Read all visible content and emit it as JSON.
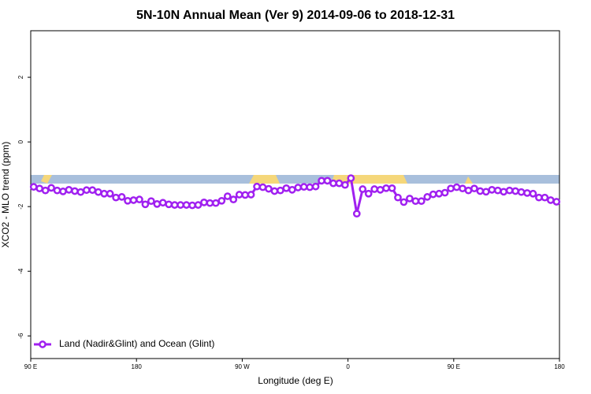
{
  "chart_data": {
    "type": "line",
    "title": "5N-10N Annual Mean (Ver 9)   2014-09-06 to 2018-12-31",
    "x_label": "Longitude (deg E)",
    "y_label": "XCO2 - MLO trend (ppm)",
    "xlim": [
      90,
      540
    ],
    "xticks": [
      {
        "value": 90,
        "label": "90 E"
      },
      180,
      {
        "value": 270,
        "label": "90 W"
      },
      {
        "value": 360,
        "label": "0"
      },
      {
        "value": 450,
        "label": "90 E"
      },
      {
        "value": 540,
        "label": "180"
      }
    ],
    "ylim": [
      -6.7,
      3.44
    ],
    "yticks": [
      2,
      0,
      -2,
      -4,
      -6
    ],
    "legend": "bottomleft",
    "x": [
      92.5,
      97.5,
      102.5,
      107.5,
      112.5,
      117.5,
      122.5,
      127.5,
      132.5,
      137.5,
      142.5,
      147.5,
      152.5,
      157.5,
      162.5,
      167.5,
      172.5,
      177.5,
      182.5,
      187.5,
      192.5,
      197.5,
      202.5,
      207.5,
      212.5,
      217.5,
      222.5,
      227.5,
      232.5,
      237.5,
      242.5,
      247.5,
      252.5,
      257.5,
      262.5,
      267.5,
      272.5,
      277.5,
      282.5,
      287.5,
      292.5,
      297.5,
      302.5,
      307.5,
      312.5,
      317.5,
      322.5,
      327.5,
      332.5,
      337.5,
      342.5,
      347.5,
      352.5,
      357.5,
      362.5,
      367.5,
      372.5,
      377.5,
      382.5,
      387.5,
      392.5,
      397.5,
      402.5,
      407.5,
      412.5,
      417.5,
      422.5,
      427.5,
      432.5,
      437.5,
      442.5,
      447.5,
      452.5,
      457.5,
      462.5,
      467.5,
      472.5,
      477.5,
      482.5,
      487.5,
      492.5,
      497.5,
      502.5,
      507.5,
      512.5,
      517.5,
      522.5,
      527.5,
      532.5,
      537.5
    ],
    "series": [
      {
        "name": "Land (Nadir&Glint) and Ocean (Glint)",
        "color": "#a020f0",
        "values": [
          -1.39,
          -1.44,
          -1.5,
          -1.42,
          -1.5,
          -1.53,
          -1.48,
          -1.52,
          -1.55,
          -1.49,
          -1.49,
          -1.55,
          -1.6,
          -1.6,
          -1.72,
          -1.7,
          -1.82,
          -1.8,
          -1.78,
          -1.93,
          -1.83,
          -1.92,
          -1.88,
          -1.93,
          -1.95,
          -1.95,
          -1.95,
          -1.96,
          -1.95,
          -1.87,
          -1.89,
          -1.89,
          -1.82,
          -1.68,
          -1.78,
          -1.63,
          -1.64,
          -1.63,
          -1.38,
          -1.4,
          -1.45,
          -1.52,
          -1.5,
          -1.43,
          -1.48,
          -1.41,
          -1.39,
          -1.4,
          -1.38,
          -1.2,
          -1.2,
          -1.28,
          -1.28,
          -1.33,
          -1.12,
          -2.22,
          -1.46,
          -1.6,
          -1.46,
          -1.48,
          -1.43,
          -1.43,
          -1.72,
          -1.86,
          -1.75,
          -1.83,
          -1.83,
          -1.7,
          -1.62,
          -1.6,
          -1.57,
          -1.44,
          -1.4,
          -1.44,
          -1.5,
          -1.44,
          -1.52,
          -1.54,
          -1.48,
          -1.5,
          -1.54,
          -1.5,
          -1.52,
          -1.55,
          -1.58,
          -1.6,
          -1.72,
          -1.72,
          -1.8,
          -1.85
        ]
      }
    ]
  }
}
